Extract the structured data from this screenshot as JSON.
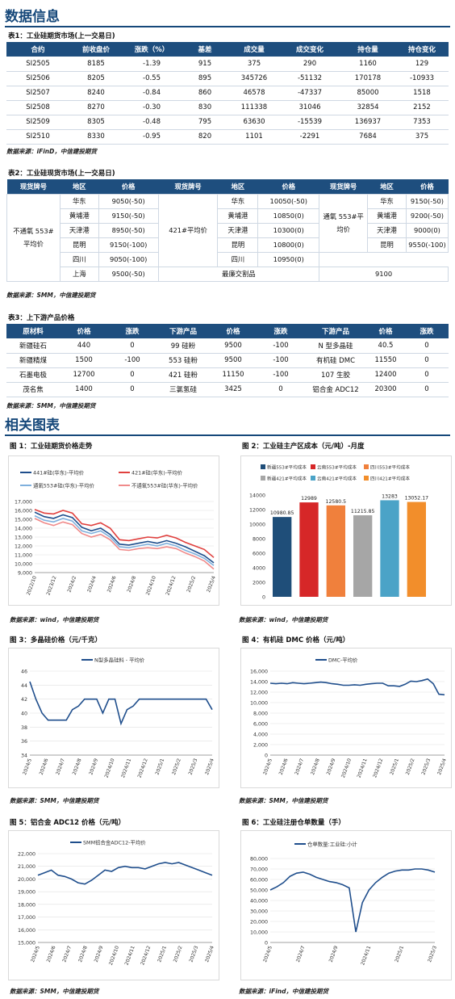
{
  "sections": {
    "data": "数据信息",
    "charts": "相关图表"
  },
  "t1": {
    "caption": "表1：工业硅期货市场(上一交易日)",
    "headers": [
      "合约",
      "前收盘价",
      "涨跌（%）",
      "基差",
      "成交量",
      "成交变化",
      "持仓量",
      "持仓变化"
    ],
    "rows": [
      [
        "SI2505",
        "8185",
        "-1.39",
        "915",
        "375",
        "290",
        "1160",
        "129"
      ],
      [
        "SI2506",
        "8205",
        "-0.55",
        "895",
        "345726",
        "-51132",
        "170178",
        "-10933"
      ],
      [
        "SI2507",
        "8240",
        "-0.84",
        "860",
        "46578",
        "-47337",
        "85000",
        "1518"
      ],
      [
        "SI2508",
        "8270",
        "-0.30",
        "830",
        "111338",
        "31046",
        "32854",
        "2152"
      ],
      [
        "SI2509",
        "8305",
        "-0.48",
        "795",
        "63630",
        "-15539",
        "136937",
        "7353"
      ],
      [
        "SI2510",
        "8330",
        "-0.95",
        "820",
        "1101",
        "-2291",
        "7684",
        "375"
      ]
    ],
    "source": "数据来源：iFinD，中信建投期货"
  },
  "t2": {
    "caption": "表2：工业硅现货市场(上一交易日)",
    "headers": [
      "现货牌号",
      "地区",
      "价格",
      "现货牌号",
      "地区",
      "价格",
      "现货牌号",
      "地区",
      "价格"
    ],
    "g1": {
      "name": "不通氧 553#平均价",
      "regions": [
        "华东",
        "黄埔港",
        "天津港",
        "昆明",
        "四川",
        "上海"
      ],
      "prices": [
        "9050(-50)",
        "9150(-50)",
        "8950(-50)",
        "9150(-100)",
        "9050(-100)",
        "9500(-50)"
      ]
    },
    "g2": {
      "name": "421#平均价",
      "regions": [
        "华东",
        "黄埔港",
        "天津港",
        "昆明",
        "四川"
      ],
      "prices": [
        "10050(-50)",
        "10850(0)",
        "10300(0)",
        "10800(0)",
        "10950(0)"
      ]
    },
    "g3": {
      "name": "通氧 553#平均价",
      "regions": [
        "华东",
        "黄埔港",
        "天津港",
        "昆明"
      ],
      "prices": [
        "9150(-50)",
        "9200(-50)",
        "9000(0)",
        "9550(-100)"
      ]
    },
    "last_label": "最廉交割品",
    "last_value": "9100",
    "source": "数据来源：SMM，中信建投期货"
  },
  "t3": {
    "caption": "表3：上下游产品价格",
    "headers": [
      "原材料",
      "价格",
      "涨跌",
      "下游产品",
      "价格",
      "涨跌",
      "下游产品",
      "价格",
      "涨跌"
    ],
    "rows": [
      [
        "新疆硅石",
        "440",
        "0",
        "99 硅粉",
        "9500",
        "-100",
        "N 型多晶硅",
        "40.5",
        "0"
      ],
      [
        "新疆精煤",
        "1500",
        "-100",
        "553 硅粉",
        "9500",
        "-100",
        "有机硅 DMC",
        "11550",
        "0"
      ],
      [
        "石墨电极",
        "12700",
        "0",
        "421 硅粉",
        "11150",
        "-100",
        "107 生胶",
        "12400",
        "0"
      ],
      [
        "茂名焦",
        "1400",
        "0",
        "三氯氢硅",
        "3425",
        "0",
        "铝合金 ADC12",
        "20300",
        "0"
      ]
    ],
    "source": "数据来源：SMM，中信建投期货"
  },
  "fig_captions": [
    "图 1：工业硅期货价格走势",
    "图 2：工业硅主产区成本（元/吨）-月度",
    "图 3：多晶硅价格（元/千克）",
    "图 4：有机硅 DMC 价格（元/吨）",
    "图 5：铝合金 ADC12 价格（元/吨）",
    "图 6：工业硅注册仓单数量（手）"
  ],
  "fig_sources": [
    "数据来源：wind，中信建投期货",
    "数据来源：wind，中信建投期货",
    "数据来源：SMM，中信建投期货",
    "数据来源：SMM，中信建投期货",
    "数据来源：SMM，中信建投期货",
    "数据来源：iFind，中信建投期货"
  ],
  "chart_data": [
    {
      "type": "line",
      "legend": [
        "441#硅(华东)-平均价",
        "421#硅(华东)-平均价",
        "通氧553#硅(华东)-平均价",
        "不通氧553#硅(华东)-平均价"
      ],
      "colors": [
        "#1f4e8c",
        "#e0403e",
        "#7fb0dd",
        "#f08a8a"
      ],
      "xticks": [
        "2022/10",
        "2023/12",
        "2024/2",
        "2024/4",
        "2024/6",
        "2024/8",
        "2024/10",
        "2024/12",
        "2025/2",
        "2025/4"
      ],
      "yticks": [
        "9,000",
        "10,000",
        "11,000",
        "12,000",
        "13,000",
        "14,000",
        "15,000",
        "16,000",
        "17,000"
      ],
      "ylim": [
        9000,
        17000
      ],
      "series": [
        {
          "name": "441#硅(华东)-平均价",
          "values": [
            15800,
            15300,
            15100,
            15500,
            15200,
            14100,
            13700,
            14000,
            13300,
            12200,
            12100,
            12300,
            12500,
            12300,
            12600,
            12300,
            11900,
            11400,
            10900,
            10100
          ]
        },
        {
          "name": "421#硅(华东)-平均价",
          "values": [
            16100,
            15700,
            15600,
            16000,
            15700,
            14500,
            14300,
            14600,
            14000,
            12700,
            12600,
            12800,
            13000,
            12900,
            13200,
            12900,
            12400,
            12000,
            11600,
            10700
          ]
        },
        {
          "name": "通氧553#硅(华东)-平均价",
          "values": [
            15400,
            14900,
            14700,
            15100,
            14800,
            13700,
            13400,
            13700,
            13000,
            11900,
            11800,
            12000,
            12200,
            12000,
            12300,
            12000,
            11500,
            11100,
            10600,
            9800
          ]
        },
        {
          "name": "不通氧553#硅(华东)-平均价",
          "values": [
            15100,
            14600,
            14300,
            14700,
            14400,
            13400,
            13000,
            13300,
            12700,
            11600,
            11500,
            11700,
            11800,
            11700,
            11900,
            11700,
            11200,
            10800,
            10300,
            9400
          ]
        }
      ]
    },
    {
      "type": "bar",
      "categories": [
        "新疆553#平均成本",
        "云南553#平均成本",
        "四川553#平均成本",
        "新疆421#平均成本",
        "云南421#平均成本",
        "四川421#平均成本"
      ],
      "values": [
        10980.85,
        12989,
        12580.5,
        11215.85,
        13283,
        13052.17
      ],
      "labels": [
        "10980.85",
        "12989",
        "12580.5",
        "11215.85",
        "13283",
        "13052.17"
      ],
      "colors": [
        "#1f4e79",
        "#d62728",
        "#f0803c",
        "#a6a6a6",
        "#4ba3c7",
        "#f28e2b"
      ],
      "yticks": [
        "0",
        "2000",
        "4000",
        "6000",
        "8000",
        "10000",
        "12000",
        "14000"
      ],
      "ylim": [
        0,
        14000
      ]
    },
    {
      "type": "line",
      "legend": [
        "N型多晶硅料 - 平均价"
      ],
      "colors": [
        "#1f4e8c"
      ],
      "xticks": [
        "2024/5",
        "2024/6",
        "2024/7",
        "2024/8",
        "2024/9",
        "2024/10",
        "2024/11",
        "2024/12",
        "2025/1",
        "2025/2",
        "2025/3",
        "2025/4"
      ],
      "yticks": [
        "34",
        "36",
        "38",
        "40",
        "42",
        "44",
        "46"
      ],
      "ylim": [
        34,
        46
      ],
      "series": [
        {
          "name": "N型多晶硅料 - 平均价",
          "values": [
            44.5,
            42,
            40,
            39,
            39,
            39,
            39,
            40.5,
            41,
            42,
            42,
            42,
            40,
            42,
            42,
            38.5,
            40.5,
            41,
            42,
            42,
            42,
            42,
            42,
            42,
            42,
            42,
            42,
            42,
            42,
            42,
            40.5
          ]
        }
      ]
    },
    {
      "type": "line",
      "legend": [
        "DMC-平均价"
      ],
      "colors": [
        "#1f4e8c"
      ],
      "xticks": [
        "2024/5",
        "2024/6",
        "2024/7",
        "2024/8",
        "2024/9",
        "2024/10",
        "2024/11",
        "2024/12",
        "2025/1",
        "2025/2",
        "2025/3",
        "2025/4"
      ],
      "yticks": [
        "0",
        "2,000",
        "4,000",
        "6,000",
        "8,000",
        "10,000",
        "12,000",
        "14,000",
        "16,000"
      ],
      "ylim": [
        0,
        16000
      ],
      "series": [
        {
          "name": "DMC-平均价",
          "values": [
            13700,
            13600,
            13700,
            13600,
            13800,
            13700,
            13600,
            13700,
            13800,
            13900,
            13800,
            13600,
            13500,
            13300,
            13300,
            13400,
            13300,
            13500,
            13600,
            13700,
            13700,
            13200,
            13200,
            13100,
            13500,
            14100,
            14000,
            14200,
            14500,
            13600,
            11600,
            11500
          ]
        }
      ]
    },
    {
      "type": "line",
      "legend": [
        "SMM铝合金ADC12-平均价"
      ],
      "colors": [
        "#1f4e8c"
      ],
      "xticks": [
        "2024/5",
        "2024/6",
        "2024/7",
        "2024/8",
        "2024/9",
        "2024/10",
        "2024/11",
        "2024/12",
        "2025/1",
        "2025/2",
        "2025/3",
        "2025/4"
      ],
      "yticks": [
        "15,000",
        "16,000",
        "17,000",
        "18,000",
        "19,000",
        "20,000",
        "21,000",
        "22,000"
      ],
      "ylim": [
        15000,
        22000
      ],
      "series": [
        {
          "name": "SMM铝合金ADC12-平均价",
          "values": [
            20300,
            20500,
            20700,
            20300,
            20200,
            20000,
            19700,
            19600,
            19900,
            20300,
            20700,
            20600,
            20900,
            21000,
            20900,
            20900,
            20800,
            21000,
            21200,
            21300,
            21200,
            21300,
            21100,
            20900,
            20700,
            20500,
            20300
          ]
        }
      ]
    },
    {
      "type": "line",
      "legend": [
        "仓单数量:工业硅:小计"
      ],
      "colors": [
        "#1f4e8c"
      ],
      "xticks": [
        "2024/5",
        "2024/7",
        "2024/9",
        "2024/11",
        "2025/1",
        "2025/3"
      ],
      "yticks": [
        "0",
        "10,000",
        "20,000",
        "30,000",
        "40,000",
        "50,000",
        "60,000",
        "70,000",
        "80,000"
      ],
      "ylim": [
        0,
        80000
      ],
      "series": [
        {
          "name": "仓单数量:工业硅:小计",
          "values": [
            50000,
            53000,
            57000,
            63000,
            66000,
            67000,
            65000,
            62000,
            60000,
            58000,
            57000,
            55000,
            52000,
            10000,
            38000,
            50000,
            57000,
            62000,
            66000,
            68000,
            69000,
            69000,
            70000,
            70000,
            69000,
            67000
          ]
        }
      ]
    }
  ]
}
